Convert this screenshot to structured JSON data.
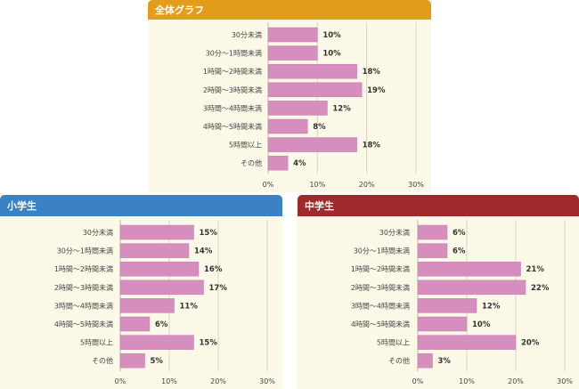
{
  "colors": {
    "bar": "#d68ebf",
    "bar_edge": "#c77aae",
    "grid": "#d9d4c4",
    "panel_bg": "#fdf9e8"
  },
  "panels": [
    {
      "title": "全体グラフ",
      "header_color": "#e39d1a"
    },
    {
      "title": "小学生",
      "header_color": "#3b82c4"
    },
    {
      "title": "中学生",
      "header_color": "#9e2a2b"
    }
  ],
  "chart_data": [
    {
      "type": "bar",
      "orientation": "horizontal",
      "title": "全体グラフ",
      "categories": [
        "30分未満",
        "30分～1時間未満",
        "1時間～2時間未満",
        "2時間～3時間未満",
        "3時間～4時間未満",
        "4時間～5時間未満",
        "5時間以上",
        "その他"
      ],
      "values": [
        10,
        10,
        18,
        19,
        12,
        8,
        18,
        4
      ],
      "value_labels": [
        "10%",
        "10%",
        "18%",
        "19%",
        "12%",
        "8%",
        "18%",
        "4%"
      ],
      "xlim": [
        0,
        30
      ],
      "ticks": [
        "0%",
        "10%",
        "20%",
        "30%"
      ],
      "grid": true
    },
    {
      "type": "bar",
      "orientation": "horizontal",
      "title": "小学生",
      "categories": [
        "30分未満",
        "30分～1時間未満",
        "1時間～2時間未満",
        "2時間～3時間未満",
        "3時間～4時間未満",
        "4時間～5時間未満",
        "5時間以上",
        "その他"
      ],
      "values": [
        15,
        14,
        16,
        17,
        11,
        6,
        15,
        5
      ],
      "value_labels": [
        "15%",
        "14%",
        "16%",
        "17%",
        "11%",
        "6%",
        "15%",
        "5%"
      ],
      "xlim": [
        0,
        30
      ],
      "ticks": [
        "0%",
        "10%",
        "20%",
        "30%"
      ],
      "grid": true
    },
    {
      "type": "bar",
      "orientation": "horizontal",
      "title": "中学生",
      "categories": [
        "30分未満",
        "30分～1時間未満",
        "1時間～2時間未満",
        "2時間～3時間未満",
        "3時間～4時間未満",
        "4時間～5時間未満",
        "5時間以上",
        "その他"
      ],
      "values": [
        6,
        6,
        21,
        22,
        12,
        10,
        20,
        3
      ],
      "value_labels": [
        "6%",
        "6%",
        "21%",
        "22%",
        "12%",
        "10%",
        "20%",
        "3%"
      ],
      "xlim": [
        0,
        30
      ],
      "ticks": [
        "0%",
        "10%",
        "20%",
        "30%"
      ],
      "grid": true
    }
  ]
}
